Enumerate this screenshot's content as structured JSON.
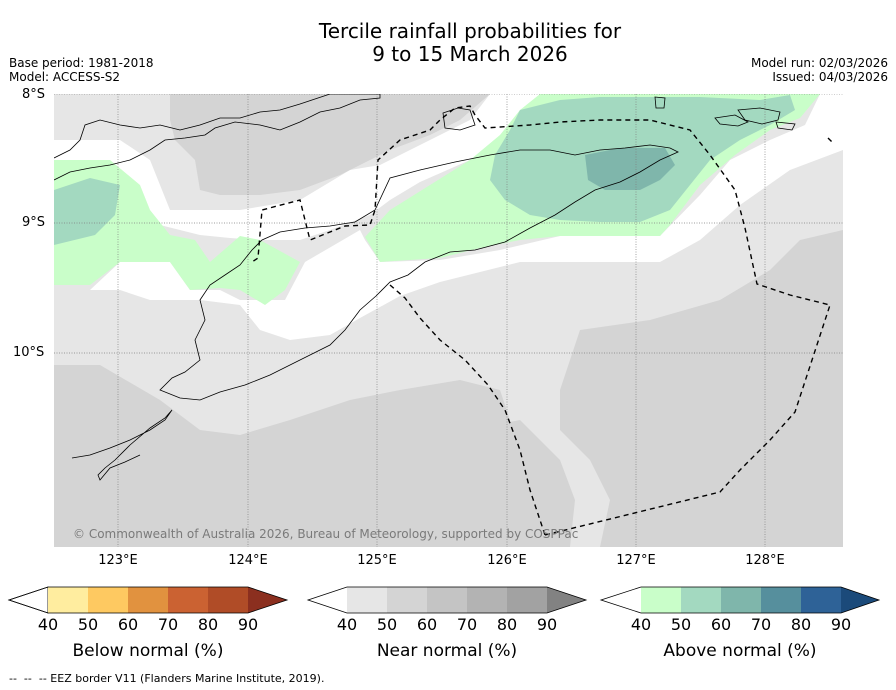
{
  "title": {
    "line1": "Tercile rainfall probabilities for",
    "line2": "9 to 15 March 2026"
  },
  "meta": {
    "base_period": "Base period: 1981-2018",
    "model": "Model: ACCESS-S2",
    "model_run": "Model run: 02/03/2026",
    "issued": "Issued: 04/03/2026"
  },
  "axes": {
    "lat_labels": [
      "8°S",
      "9°S",
      "10°S"
    ],
    "lon_labels": [
      "123°E",
      "124°E",
      "125°E",
      "126°E",
      "127°E",
      "128°E"
    ]
  },
  "copyright": "© Commonwealth of Australia 2026, Bureau of Meteorology, supported by COSPPac",
  "colorbars": {
    "below": {
      "label": "Below normal (%)",
      "ticks": [
        "40",
        "50",
        "60",
        "70",
        "80",
        "90"
      ],
      "colors": [
        "#ffffff",
        "#ffed9f",
        "#fec961",
        "#e1923f",
        "#cb6232",
        "#b04c27",
        "#8b2f1f"
      ]
    },
    "near": {
      "label": "Near normal (%)",
      "ticks": [
        "40",
        "50",
        "60",
        "70",
        "80",
        "90"
      ],
      "colors": [
        "#ffffff",
        "#e6e6e6",
        "#d4d4d4",
        "#c4c4c4",
        "#b3b3b3",
        "#a2a2a2",
        "#828282"
      ]
    },
    "above": {
      "label": "Above normal (%)",
      "ticks": [
        "40",
        "50",
        "60",
        "70",
        "80",
        "90"
      ],
      "colors": [
        "#ffffff",
        "#c9fec9",
        "#a3d9c0",
        "#7fb6ab",
        "#568f9d",
        "#2e6297",
        "#1b4a7a"
      ]
    }
  },
  "footnote": "--  --  -- EEZ border V11 (Flanders Marine Institute, 2019)."
}
